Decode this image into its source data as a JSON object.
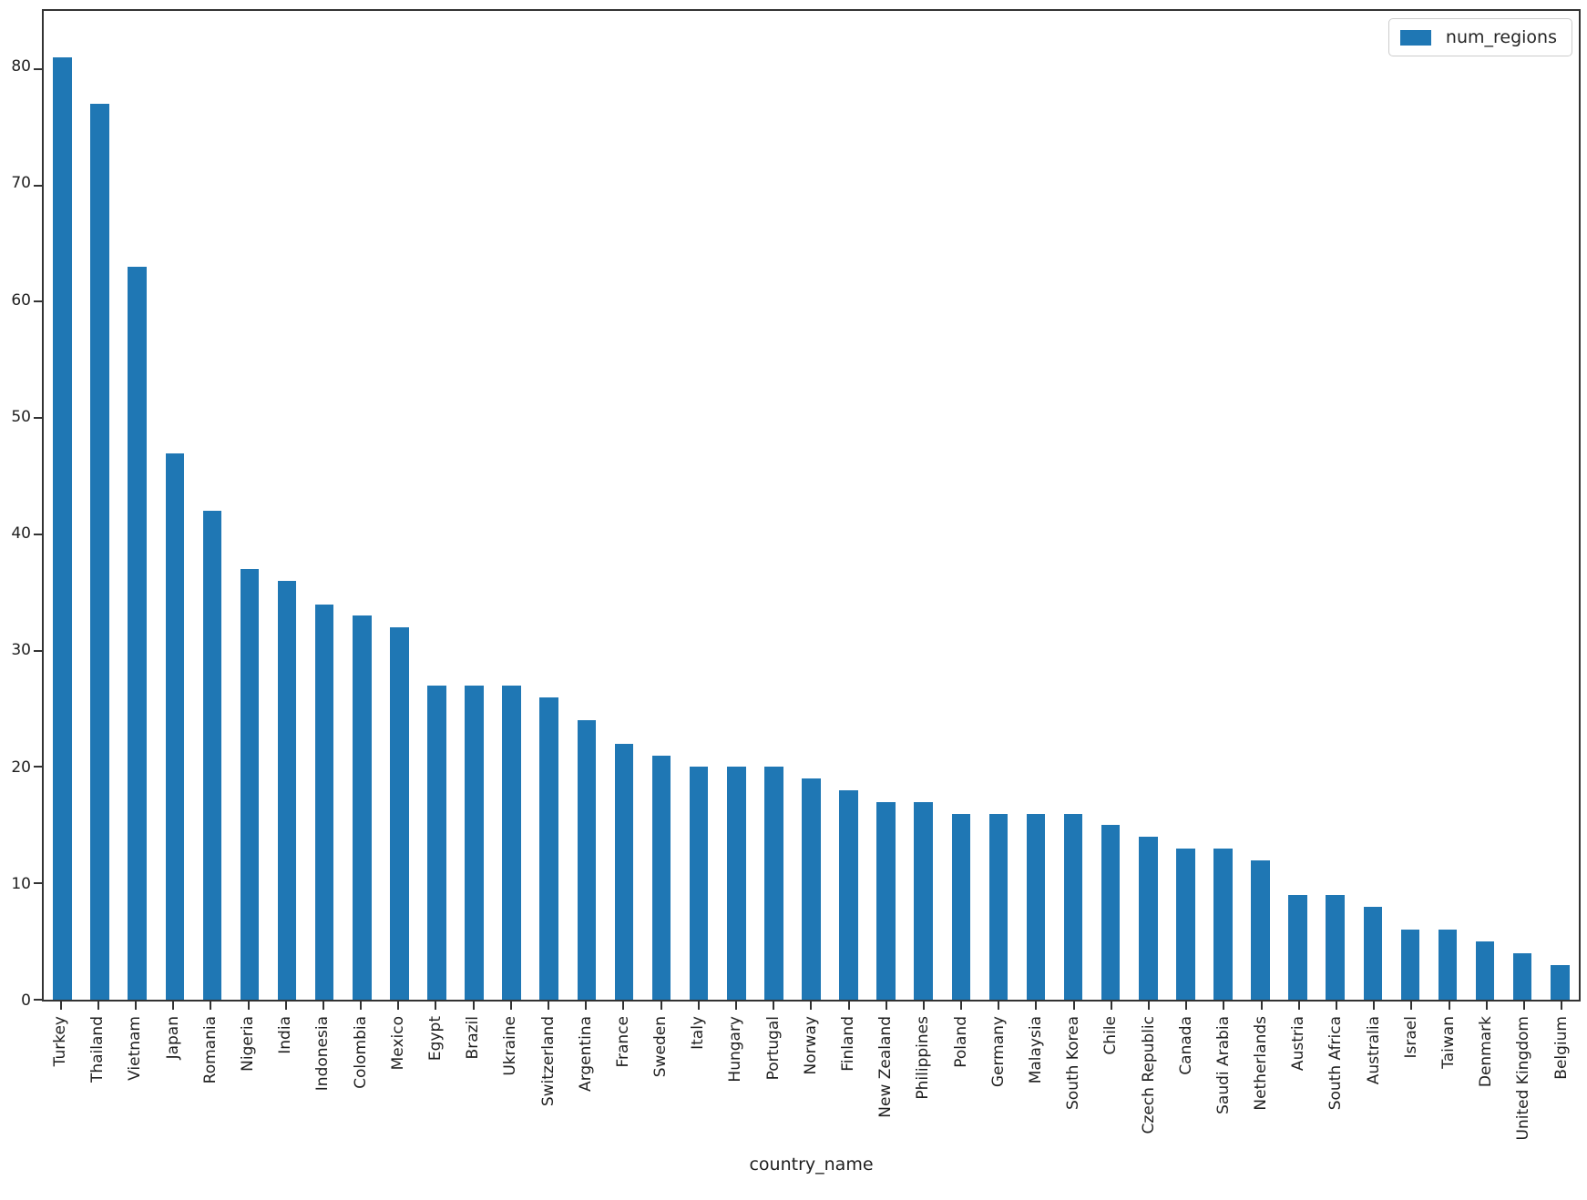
{
  "chart_data": {
    "type": "bar",
    "title": "",
    "xlabel": "country_name",
    "ylabel": "",
    "legend_label": "num_regions",
    "legend_position": "upper right",
    "grid": false,
    "bar_color": "#1f77b4",
    "spine_color": "#333333",
    "ylim": [
      0,
      85
    ],
    "yticks": [
      0,
      10,
      20,
      30,
      40,
      50,
      60,
      70,
      80
    ],
    "categories": [
      "Turkey",
      "Thailand",
      "Vietnam",
      "Japan",
      "Romania",
      "Nigeria",
      "India",
      "Indonesia",
      "Colombia",
      "Mexico",
      "Egypt",
      "Brazil",
      "Ukraine",
      "Switzerland",
      "Argentina",
      "France",
      "Sweden",
      "Italy",
      "Hungary",
      "Portugal",
      "Norway",
      "Finland",
      "New Zealand",
      "Philippines",
      "Poland",
      "Germany",
      "Malaysia",
      "South Korea",
      "Chile",
      "Czech Republic",
      "Canada",
      "Saudi Arabia",
      "Netherlands",
      "Austria",
      "South Africa",
      "Australia",
      "Israel",
      "Taiwan",
      "Denmark",
      "United Kingdom",
      "Belgium"
    ],
    "values": [
      81,
      77,
      63,
      47,
      42,
      37,
      36,
      34,
      33,
      32,
      27,
      27,
      27,
      26,
      24,
      22,
      21,
      20,
      20,
      20,
      19,
      18,
      17,
      17,
      16,
      16,
      16,
      16,
      15,
      14,
      13,
      13,
      12,
      9,
      9,
      8,
      6,
      6,
      5,
      4,
      3
    ]
  }
}
